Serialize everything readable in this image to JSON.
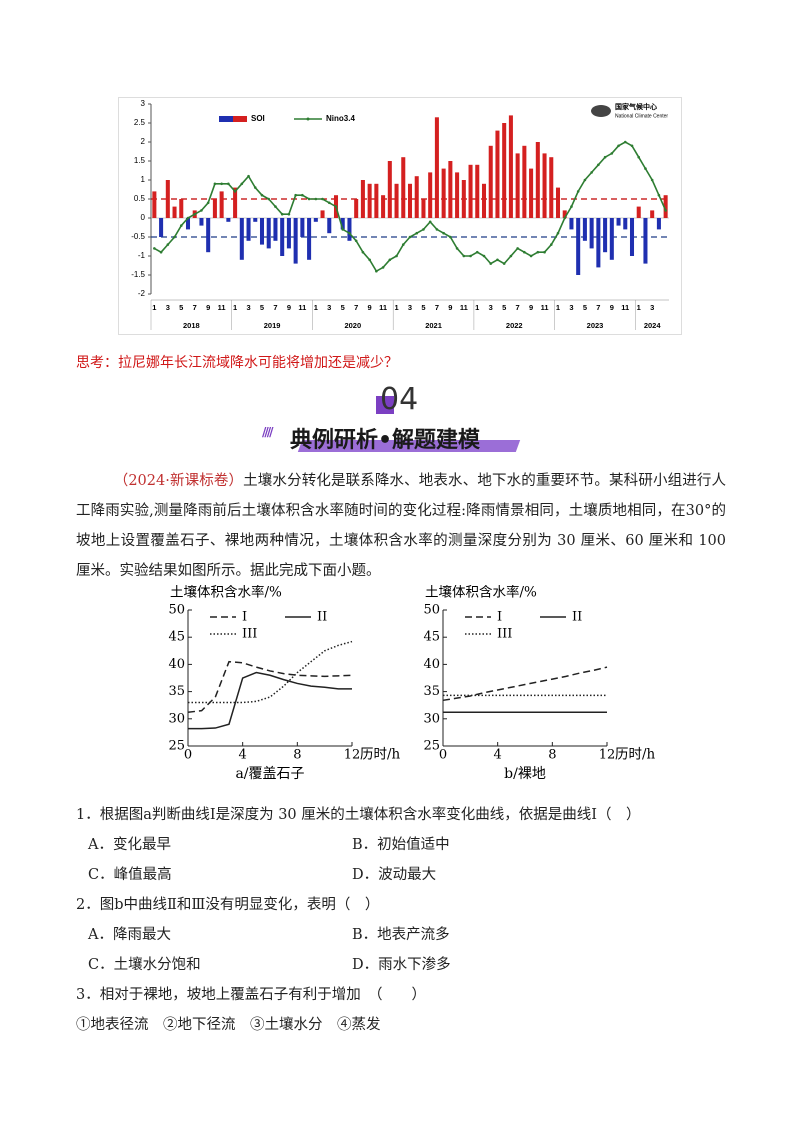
{
  "chart_data": [
    {
      "type": "combo",
      "categories": [
        "1",
        null,
        "3",
        null,
        "5",
        null,
        "7",
        null,
        "9",
        null,
        "11",
        null,
        "1",
        null,
        "3",
        null,
        "5",
        null,
        "7",
        null,
        "9",
        null,
        "11",
        null,
        "1",
        null,
        "3",
        null,
        "5",
        null,
        "7",
        null,
        "9",
        null,
        "11",
        null,
        "1",
        null,
        "3",
        null,
        "5",
        null,
        "7",
        null,
        "9",
        null,
        "11",
        null,
        "1",
        null,
        "3",
        null,
        "5",
        null,
        "7",
        null,
        "9",
        null,
        "11",
        null,
        "1",
        null,
        "3",
        null,
        "5",
        null,
        "7",
        null,
        "9",
        null,
        "11",
        null,
        "1",
        null,
        "3",
        null,
        null
      ],
      "year_labels": [
        "2018",
        "2019",
        "2020",
        "2021",
        "2022",
        "2023",
        "2024"
      ],
      "series": [
        {
          "name": "SOI",
          "kind": "bar",
          "colors": {
            "positive": "#d42020",
            "negative": "#1f2fb0"
          },
          "values": [
            0.7,
            -0.5,
            1.0,
            0.3,
            0.5,
            -0.3,
            0.2,
            -0.2,
            -0.9,
            0.5,
            0.7,
            -0.1,
            0.8,
            -1.1,
            -0.6,
            -0.1,
            -0.7,
            -0.8,
            -0.6,
            -1.0,
            -0.8,
            -1.2,
            -0.5,
            -1.1,
            -0.1,
            0.2,
            -0.4,
            0.6,
            -0.3,
            -0.6,
            0.5,
            1.0,
            0.9,
            0.9,
            0.6,
            1.5,
            0.9,
            1.6,
            0.9,
            1.1,
            0.5,
            1.2,
            2.65,
            1.3,
            1.5,
            1.2,
            1.0,
            1.4,
            1.4,
            0.9,
            1.9,
            2.3,
            2.5,
            2.7,
            1.7,
            1.9,
            1.3,
            2.0,
            1.7,
            1.6,
            0.8,
            0.2,
            -0.3,
            -1.5,
            -0.6,
            -0.8,
            -1.3,
            -0.9,
            -1.1,
            -0.2,
            -0.3,
            -1.0,
            0.3,
            -1.2,
            0.2,
            -0.3,
            0.6
          ]
        },
        {
          "name": "Nino3.4",
          "kind": "line",
          "color": "#2e7d32",
          "values": [
            -0.8,
            -0.9,
            -0.7,
            -0.5,
            -0.2,
            0.0,
            0.1,
            0.2,
            0.4,
            0.9,
            0.9,
            0.9,
            0.7,
            0.9,
            1.1,
            0.8,
            0.6,
            0.5,
            0.3,
            0.1,
            0.1,
            0.6,
            0.6,
            0.5,
            0.5,
            0.5,
            0.4,
            0.3,
            -0.3,
            -0.4,
            -0.6,
            -0.9,
            -1.1,
            -1.4,
            -1.3,
            -1.1,
            -1.0,
            -0.7,
            -0.5,
            -0.4,
            -0.3,
            -0.1,
            -0.3,
            -0.4,
            -0.5,
            -0.8,
            -1.0,
            -1.0,
            -0.9,
            -1.0,
            -1.2,
            -1.1,
            -1.2,
            -1.0,
            -0.8,
            -0.9,
            -1.0,
            -0.9,
            -0.9,
            -0.7,
            -0.4,
            0.0,
            0.3,
            0.7,
            1.0,
            1.2,
            1.4,
            1.6,
            1.7,
            1.9,
            2.0,
            1.9,
            1.6,
            1.3,
            1.0,
            0.6,
            0.2
          ]
        }
      ],
      "reference_lines": [
        {
          "value": 0.5,
          "color": "#c00000"
        },
        {
          "value": -0.5,
          "color": "#1f3c88"
        }
      ],
      "ylim": [
        -2,
        3
      ],
      "yticks": [
        -2,
        -1.5,
        -1,
        -0.5,
        0,
        0.5,
        1,
        1.5,
        2,
        2.5,
        3
      ],
      "logo": [
        "国家气候中心",
        "National Climate Center"
      ]
    },
    {
      "type": "line",
      "ylabel": "土壤体积含水率/%",
      "xlabel": "历时/h",
      "caption": "a/覆盖石子",
      "x": [
        0,
        1,
        2,
        3,
        4,
        5,
        6,
        7,
        8,
        9,
        10,
        11,
        12
      ],
      "xlim": [
        0,
        12
      ],
      "xticks": [
        0,
        4,
        8,
        12
      ],
      "ylim": [
        25,
        50
      ],
      "yticks": [
        25,
        30,
        35,
        40,
        45,
        50
      ],
      "series": [
        {
          "name": "I",
          "dash": "dashed",
          "color": "#222",
          "values": [
            31.2,
            31.5,
            34,
            40.5,
            40.3,
            39.5,
            38.8,
            38.3,
            38,
            37.9,
            37.8,
            37.9,
            38
          ]
        },
        {
          "name": "II",
          "dash": "solid",
          "color": "#222",
          "values": [
            28.2,
            28.2,
            28.3,
            29,
            37.5,
            38.5,
            38,
            37.2,
            36.5,
            36,
            35.8,
            35.5,
            35.5
          ]
        },
        {
          "name": "III",
          "dash": "dotted",
          "color": "#222",
          "values": [
            33,
            33,
            33,
            33,
            33,
            33.2,
            34,
            36,
            38.5,
            40.5,
            42.5,
            43.5,
            44.2
          ]
        }
      ]
    },
    {
      "type": "line",
      "ylabel": "土壤体积含水率/%",
      "xlabel": "历时/h",
      "caption": "b/裸地",
      "x": [
        0,
        1,
        2,
        3,
        4,
        5,
        6,
        7,
        8,
        9,
        10,
        11,
        12
      ],
      "xlim": [
        0,
        12
      ],
      "xticks": [
        0,
        4,
        8,
        12
      ],
      "ylim": [
        25,
        50
      ],
      "yticks": [
        25,
        30,
        35,
        40,
        45,
        50
      ],
      "series": [
        {
          "name": "I",
          "dash": "dashed",
          "color": "#222",
          "values": [
            33.4,
            33.8,
            34.2,
            34.8,
            35.3,
            35.8,
            36.3,
            36.8,
            37.3,
            37.8,
            38.4,
            38.9,
            39.5
          ]
        },
        {
          "name": "II",
          "dash": "solid",
          "color": "#222",
          "values": [
            31.2,
            31.2,
            31.2,
            31.2,
            31.2,
            31.2,
            31.2,
            31.2,
            31.2,
            31.2,
            31.2,
            31.2,
            31.2
          ]
        },
        {
          "name": "III",
          "dash": "dotted",
          "color": "#222",
          "values": [
            34.3,
            34.3,
            34.3,
            34.3,
            34.3,
            34.3,
            34.3,
            34.3,
            34.3,
            34.3,
            34.3,
            34.3,
            34.3
          ]
        }
      ]
    }
  ],
  "document": {
    "think": "思考：拉尼娜年长江流域降水可能将增加还是减少？",
    "section_number": "04",
    "section_title": "典例研析•解题建模",
    "source": "（2024·新课标卷）",
    "intro": "土壤水分转化是联系降水、地表水、地下水的重要环节。某科研小组进行人工降雨实验,测量降雨前后土壤体积含水率随时间的变化过程:降雨情景相同，土壤质地相同，在30°的坡地上设置覆盖石子、裸地两种情况，土壤体积含水率的测量深度分别为 30 厘米、60 厘米和 100 厘米。实验结果如图所示。据此完成下面小题。",
    "questions": [
      {
        "stem": "1．根据图a判断曲线Ⅰ是深度为 30 厘米的土壤体积含水率变化曲线，依据是曲线Ⅰ（　）",
        "options": [
          "A．变化最早",
          "B．初始值适中",
          "C．峰值最高",
          "D．波动最大"
        ]
      },
      {
        "stem": "2．图b中曲线Ⅱ和Ⅲ没有明显变化，表明（　）",
        "options": [
          "A．降雨最大",
          "B．地表产流多",
          "C．土壤水分饱和",
          "D．雨水下渗多"
        ]
      },
      {
        "stem": "3．相对于裸地，坡地上覆盖石子有利于增加　（　　）",
        "options": [
          "①地表径流　②地下径流　③土壤水分　④蒸发"
        ]
      }
    ]
  }
}
